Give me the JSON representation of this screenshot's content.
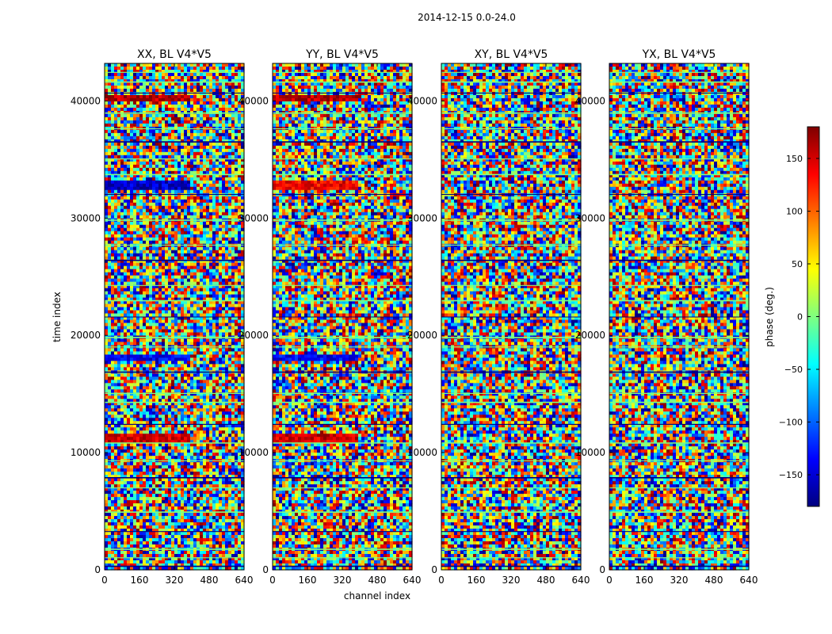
{
  "figure": {
    "suptitle": "2014-12-15 0.0-24.0"
  },
  "chart_data": {
    "type": "heatmap",
    "ylabel": "time index",
    "xlabel": "channel index",
    "xlim": [
      0,
      640
    ],
    "ylim": [
      0,
      43200
    ],
    "x_ticks": [
      0,
      160,
      320,
      480,
      640
    ],
    "y_ticks": [
      0,
      10000,
      20000,
      30000,
      40000
    ],
    "panels": [
      {
        "title": "XX, BL V4*V5"
      },
      {
        "title": "YY, BL V4*V5"
      },
      {
        "title": "XY, BL V4*V5"
      },
      {
        "title": "YX, BL V4*V5"
      }
    ],
    "colorbar": {
      "label": "phase (deg.)",
      "colormap": "jet",
      "vmin": -180,
      "vmax": 180,
      "ticks": [
        -150,
        -100,
        -50,
        0,
        50,
        100,
        150
      ],
      "tick_labels": [
        "−150",
        "−100",
        "−50",
        "0",
        "50",
        "100",
        "150"
      ],
      "colors": [
        "#00007f",
        "#0000ff",
        "#007fff",
        "#00ffff",
        "#7fff7f",
        "#ffff00",
        "#ff7f00",
        "#ff0000",
        "#7f0000"
      ]
    }
  }
}
